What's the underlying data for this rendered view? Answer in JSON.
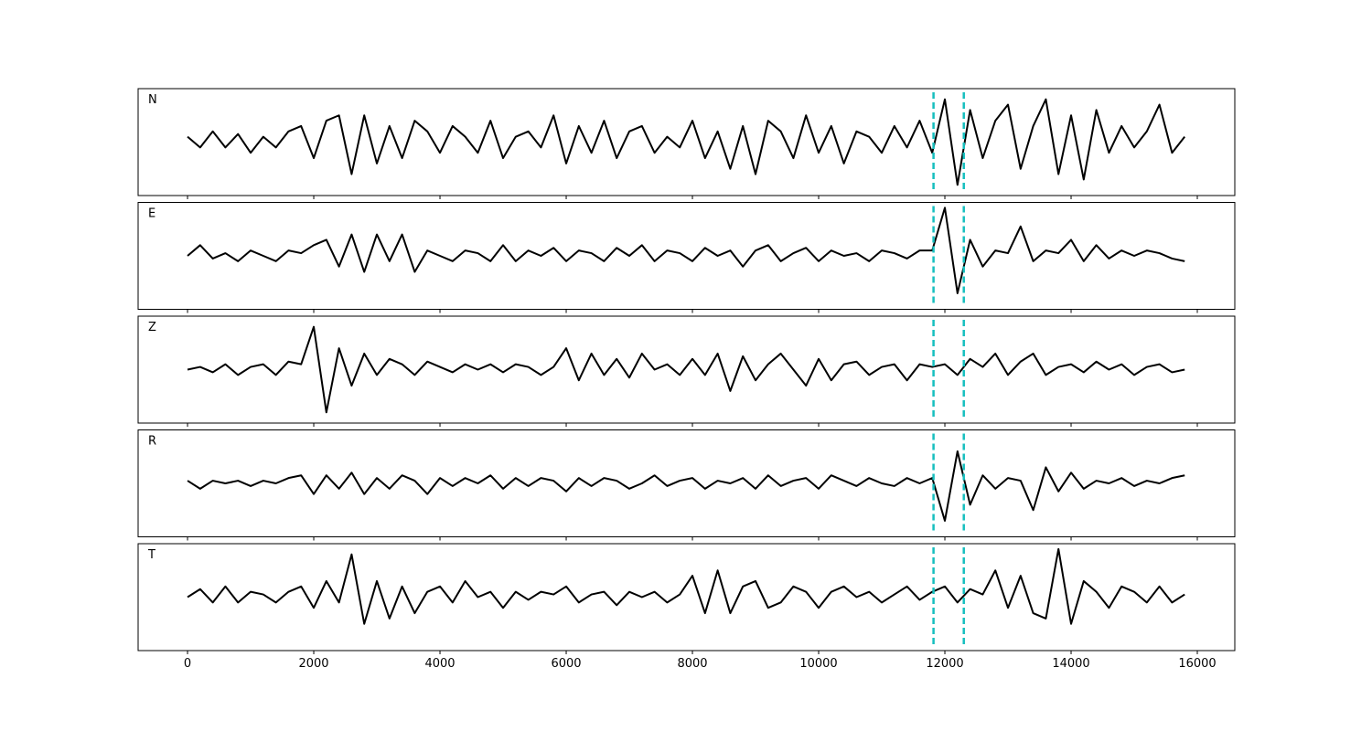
{
  "chart_data": {
    "type": "line",
    "layout": "stacked",
    "x": [
      0,
      200,
      400,
      600,
      800,
      1000,
      1200,
      1400,
      1600,
      1800,
      2000,
      2200,
      2400,
      2600,
      2800,
      3000,
      3200,
      3400,
      3600,
      3800,
      4000,
      4200,
      4400,
      4600,
      4800,
      5000,
      5200,
      5400,
      5600,
      5800,
      6000,
      6200,
      6400,
      6600,
      6800,
      7000,
      7200,
      7400,
      7600,
      7800,
      8000,
      8200,
      8400,
      8600,
      8800,
      9000,
      9200,
      9400,
      9600,
      9800,
      10000,
      10200,
      10400,
      10600,
      10800,
      11000,
      11200,
      11400,
      11600,
      11800,
      12000,
      12200,
      12400,
      12600,
      12800,
      13000,
      13200,
      13400,
      13600,
      13800,
      14000,
      14200,
      14400,
      14600,
      14800,
      15000,
      15200,
      15400,
      15600,
      15800
    ],
    "series": [
      {
        "name": "N",
        "color": "#000000",
        "values": [
          0.1,
          -0.1,
          0.2,
          -0.1,
          0.15,
          -0.2,
          0.1,
          -0.1,
          0.2,
          0.3,
          -0.3,
          0.4,
          0.5,
          -0.6,
          0.5,
          -0.4,
          0.3,
          -0.3,
          0.4,
          0.2,
          -0.2,
          0.3,
          0.1,
          -0.2,
          0.4,
          -0.3,
          0.1,
          0.2,
          -0.1,
          0.5,
          -0.4,
          0.3,
          -0.2,
          0.4,
          -0.3,
          0.2,
          0.3,
          -0.2,
          0.1,
          -0.1,
          0.4,
          -0.3,
          0.2,
          -0.5,
          0.3,
          -0.6,
          0.4,
          0.2,
          -0.3,
          0.5,
          -0.2,
          0.3,
          -0.4,
          0.2,
          0.1,
          -0.2,
          0.3,
          -0.1,
          0.4,
          -0.2,
          0.8,
          -0.8,
          0.6,
          -0.3,
          0.4,
          0.7,
          -0.5,
          0.3,
          0.8,
          -0.6,
          0.5,
          -0.7,
          0.6,
          -0.2,
          0.3,
          -0.1,
          0.2,
          0.7,
          -0.2,
          0.1
        ]
      },
      {
        "name": "E",
        "color": "#000000",
        "values": [
          0,
          0.2,
          -0.05,
          0.05,
          -0.1,
          0.1,
          0,
          -0.1,
          0.1,
          0.05,
          0.2,
          0.3,
          -0.2,
          0.4,
          -0.3,
          0.4,
          -0.1,
          0.4,
          -0.3,
          0.1,
          0,
          -0.1,
          0.1,
          0.05,
          -0.1,
          0.2,
          -0.1,
          0.1,
          0,
          0.15,
          -0.1,
          0.1,
          0.05,
          -0.1,
          0.15,
          0,
          0.2,
          -0.1,
          0.1,
          0.05,
          -0.1,
          0.15,
          0,
          0.1,
          -0.2,
          0.1,
          0.2,
          -0.1,
          0.05,
          0.15,
          -0.1,
          0.1,
          0,
          0.05,
          -0.1,
          0.1,
          0.05,
          -0.05,
          0.1,
          0.1,
          0.9,
          -0.7,
          0.3,
          -0.2,
          0.1,
          0.05,
          0.55,
          -0.1,
          0.1,
          0.05,
          0.3,
          -0.1,
          0.2,
          -0.05,
          0.1,
          0,
          0.1,
          0.05,
          -0.05,
          -0.1
        ]
      },
      {
        "name": "Z",
        "color": "#000000",
        "values": [
          0,
          0.05,
          -0.05,
          0.1,
          -0.1,
          0.05,
          0.1,
          -0.1,
          0.15,
          0.1,
          0.8,
          -0.8,
          0.4,
          -0.3,
          0.3,
          -0.1,
          0.2,
          0.1,
          -0.1,
          0.15,
          0.05,
          -0.05,
          0.1,
          0,
          0.1,
          -0.05,
          0.1,
          0.05,
          -0.1,
          0.05,
          0.4,
          -0.2,
          0.3,
          -0.1,
          0.2,
          -0.15,
          0.3,
          0,
          0.1,
          -0.1,
          0.2,
          -0.1,
          0.3,
          -0.4,
          0.25,
          -0.2,
          0.1,
          0.3,
          0,
          -0.3,
          0.2,
          -0.2,
          0.1,
          0.15,
          -0.1,
          0.05,
          0.1,
          -0.2,
          0.1,
          0.05,
          0.1,
          -0.1,
          0.2,
          0.05,
          0.3,
          -0.1,
          0.15,
          0.3,
          -0.1,
          0.05,
          0.1,
          -0.05,
          0.15,
          0,
          0.1,
          -0.1,
          0.05,
          0.1,
          -0.05,
          0
        ]
      },
      {
        "name": "R",
        "color": "#000000",
        "values": [
          0.05,
          -0.1,
          0.05,
          0,
          0.05,
          -0.05,
          0.05,
          0,
          0.1,
          0.15,
          -0.2,
          0.15,
          -0.1,
          0.2,
          -0.2,
          0.1,
          -0.1,
          0.15,
          0.05,
          -0.2,
          0.1,
          -0.05,
          0.1,
          0,
          0.15,
          -0.1,
          0.1,
          -0.05,
          0.1,
          0.05,
          -0.15,
          0.1,
          -0.05,
          0.1,
          0.05,
          -0.1,
          0,
          0.15,
          -0.05,
          0.05,
          0.1,
          -0.1,
          0.05,
          0,
          0.1,
          -0.1,
          0.15,
          -0.05,
          0.05,
          0.1,
          -0.1,
          0.15,
          0.05,
          -0.05,
          0.1,
          0,
          -0.05,
          0.1,
          0,
          0.1,
          -0.7,
          0.6,
          -0.4,
          0.15,
          -0.1,
          0.1,
          0.05,
          -0.5,
          0.3,
          -0.15,
          0.2,
          -0.1,
          0.05,
          0,
          0.1,
          -0.05,
          0.05,
          0,
          0.1,
          0.15
        ]
      },
      {
        "name": "T",
        "color": "#000000",
        "values": [
          0,
          0.15,
          -0.1,
          0.2,
          -0.1,
          0.1,
          0.05,
          -0.1,
          0.1,
          0.2,
          -0.2,
          0.3,
          -0.1,
          0.8,
          -0.5,
          0.3,
          -0.4,
          0.2,
          -0.3,
          0.1,
          0.2,
          -0.1,
          0.3,
          0,
          0.1,
          -0.2,
          0.1,
          -0.05,
          0.1,
          0.05,
          0.2,
          -0.1,
          0.05,
          0.1,
          -0.15,
          0.1,
          0,
          0.1,
          -0.1,
          0.05,
          0.4,
          -0.3,
          0.5,
          -0.3,
          0.2,
          0.3,
          -0.2,
          -0.1,
          0.2,
          0.1,
          -0.2,
          0.1,
          0.2,
          0,
          0.1,
          -0.1,
          0.05,
          0.2,
          -0.05,
          0.1,
          0.2,
          -0.1,
          0.15,
          0.05,
          0.5,
          -0.2,
          0.4,
          -0.3,
          -0.4,
          0.9,
          -0.5,
          0.3,
          0.1,
          -0.2,
          0.2,
          0.1,
          -0.1,
          0.2,
          -0.1,
          0.05
        ]
      }
    ],
    "xlim": [
      -783,
      16594
    ],
    "ylim": [
      -1,
      1
    ],
    "xticks": [
      0,
      2000,
      4000,
      6000,
      8000,
      10000,
      12000,
      14000,
      16000
    ],
    "vlines": [
      11820,
      12300
    ],
    "vline_color": "#17bfbf",
    "grid": false
  }
}
